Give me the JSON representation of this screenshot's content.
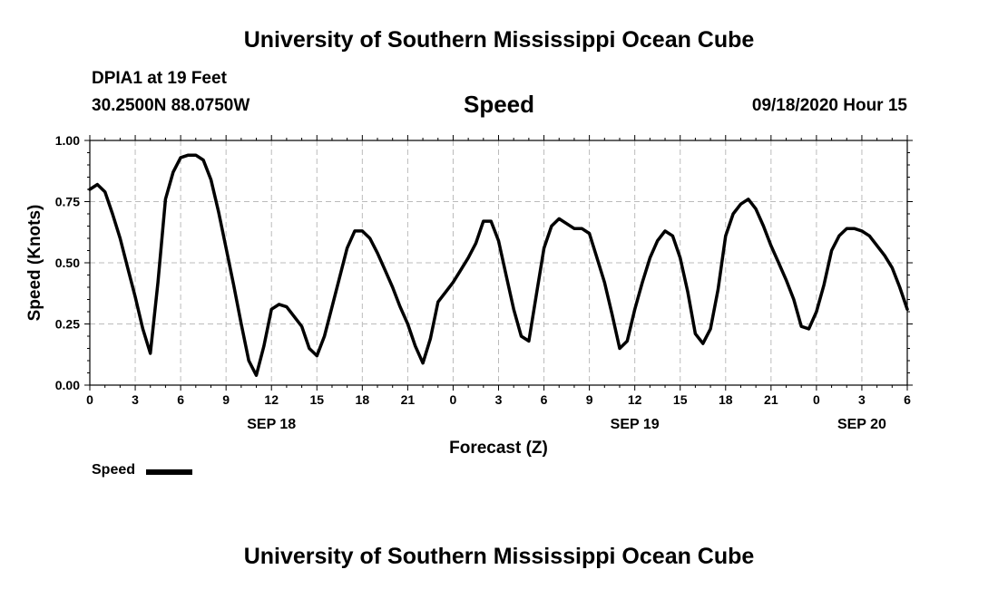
{
  "header": {
    "title": "University of Southern Mississippi Ocean Cube",
    "station": "DPIA1 at 19 Feet",
    "coordinates": "30.2500N 88.0750W",
    "variable": "Speed",
    "datetime": "09/18/2020 Hour 15"
  },
  "footer": {
    "title": "University of Southern Mississippi Ocean Cube"
  },
  "legend": {
    "label": "Speed",
    "color": "#000000"
  },
  "chart_data": {
    "type": "line",
    "title": "Speed",
    "xlabel": "Forecast (Z)",
    "ylabel": "Speed (Knots)",
    "ylim": [
      0,
      1
    ],
    "xlim": [
      0,
      54
    ],
    "yticks": [
      "0.00",
      "0.25",
      "0.50",
      "0.75",
      "1.00"
    ],
    "xticks": [
      {
        "x": 0,
        "label": "0"
      },
      {
        "x": 3,
        "label": "3"
      },
      {
        "x": 6,
        "label": "6"
      },
      {
        "x": 9,
        "label": "9"
      },
      {
        "x": 12,
        "label": "12"
      },
      {
        "x": 15,
        "label": "15"
      },
      {
        "x": 18,
        "label": "18"
      },
      {
        "x": 21,
        "label": "21"
      },
      {
        "x": 24,
        "label": "0"
      },
      {
        "x": 27,
        "label": "3"
      },
      {
        "x": 30,
        "label": "6"
      },
      {
        "x": 33,
        "label": "9"
      },
      {
        "x": 36,
        "label": "12"
      },
      {
        "x": 39,
        "label": "15"
      },
      {
        "x": 42,
        "label": "18"
      },
      {
        "x": 45,
        "label": "21"
      },
      {
        "x": 48,
        "label": "0"
      },
      {
        "x": 51,
        "label": "3"
      },
      {
        "x": 54,
        "label": "6"
      }
    ],
    "date_labels": [
      {
        "x": 12,
        "label": "SEP 18"
      },
      {
        "x": 36,
        "label": "SEP 19"
      },
      {
        "x": 51,
        "label": "SEP 20"
      }
    ],
    "grid": true,
    "series": [
      {
        "name": "Speed",
        "color": "#000000",
        "x": [
          0,
          0.5,
          1,
          1.5,
          2,
          2.5,
          3,
          3.5,
          4,
          4.5,
          5,
          5.5,
          6,
          6.5,
          7,
          7.5,
          8,
          8.5,
          9,
          9.5,
          10,
          10.5,
          11,
          11.5,
          12,
          12.5,
          13,
          13.5,
          14,
          14.5,
          15,
          15.5,
          16,
          16.5,
          17,
          17.5,
          18,
          18.5,
          19,
          19.5,
          20,
          20.5,
          21,
          21.5,
          22,
          22.5,
          23,
          23.5,
          24,
          24.5,
          25,
          25.5,
          26,
          26.5,
          27,
          27.5,
          28,
          28.5,
          29,
          29.5,
          30,
          30.5,
          31,
          31.5,
          32,
          32.5,
          33,
          33.5,
          34,
          34.5,
          35,
          35.5,
          36,
          36.5,
          37,
          37.5,
          38,
          38.5,
          39,
          39.5,
          40,
          40.5,
          41,
          41.5,
          42,
          42.5,
          43,
          43.5,
          44,
          44.5,
          45,
          45.5,
          46,
          46.5,
          47,
          47.5,
          48,
          48.5,
          49,
          49.5,
          50,
          50.5,
          51,
          51.5,
          52,
          52.5,
          53,
          53.5,
          54
        ],
        "values": [
          0.8,
          0.82,
          0.79,
          0.7,
          0.6,
          0.48,
          0.36,
          0.23,
          0.13,
          0.42,
          0.76,
          0.87,
          0.93,
          0.94,
          0.94,
          0.92,
          0.84,
          0.71,
          0.56,
          0.41,
          0.25,
          0.1,
          0.04,
          0.16,
          0.31,
          0.33,
          0.32,
          0.28,
          0.24,
          0.15,
          0.12,
          0.2,
          0.32,
          0.44,
          0.56,
          0.63,
          0.63,
          0.6,
          0.54,
          0.47,
          0.4,
          0.32,
          0.25,
          0.16,
          0.09,
          0.19,
          0.34,
          0.38,
          0.42,
          0.47,
          0.52,
          0.58,
          0.67,
          0.67,
          0.59,
          0.45,
          0.31,
          0.2,
          0.18,
          0.37,
          0.56,
          0.65,
          0.68,
          0.66,
          0.64,
          0.64,
          0.62,
          0.52,
          0.42,
          0.29,
          0.15,
          0.18,
          0.31,
          0.42,
          0.52,
          0.59,
          0.63,
          0.61,
          0.52,
          0.38,
          0.21,
          0.17,
          0.23,
          0.39,
          0.61,
          0.7,
          0.74,
          0.76,
          0.72,
          0.65,
          0.57,
          0.5,
          0.43,
          0.35,
          0.24,
          0.23,
          0.3,
          0.41,
          0.55,
          0.61,
          0.64,
          0.64,
          0.63,
          0.61,
          0.57,
          0.53,
          0.48,
          0.4,
          0.31
        ]
      }
    ]
  }
}
